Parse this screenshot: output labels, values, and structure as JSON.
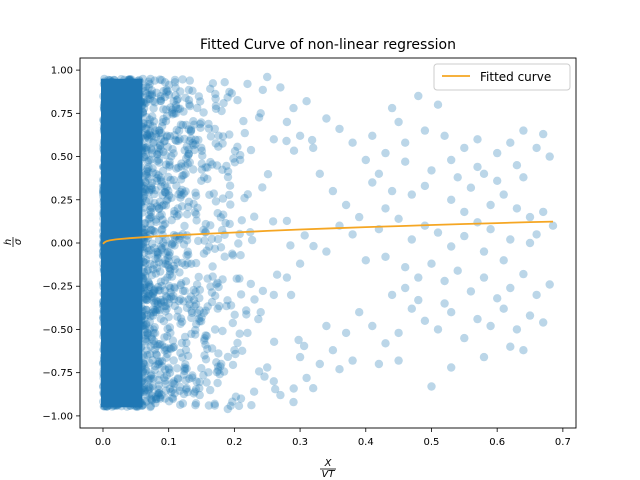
{
  "chart_data": {
    "type": "scatter",
    "title": "Fitted Curve of non-linear regression",
    "xlabel_num": "X",
    "xlabel_den": "VT",
    "ylabel_num": "h",
    "ylabel_den": "σ",
    "xlim": [
      -0.035,
      0.72
    ],
    "ylim": [
      -1.07,
      1.07
    ],
    "xticks": [
      0.0,
      0.1,
      0.2,
      0.3,
      0.4,
      0.5,
      0.6,
      0.7
    ],
    "xtick_labels": [
      "0.0",
      "0.1",
      "0.2",
      "0.3",
      "0.4",
      "0.5",
      "0.6",
      "0.7"
    ],
    "yticks": [
      -1.0,
      -0.75,
      -0.5,
      -0.25,
      0.0,
      0.25,
      0.5,
      0.75,
      1.0
    ],
    "ytick_labels": [
      "−1.00",
      "−0.75",
      "−0.50",
      "−0.25",
      "0.00",
      "0.25",
      "0.50",
      "0.75",
      "1.00"
    ],
    "grid": false,
    "legend": {
      "position": "top-right",
      "entries": [
        "Fitted curve"
      ]
    },
    "series": [
      {
        "kind": "scatter",
        "color": "#1f77b4",
        "alpha": 0.3,
        "points": [
          [
            0.48,
            0.85
          ],
          [
            0.51,
            0.8
          ],
          [
            0.45,
            0.7
          ],
          [
            0.52,
            0.62
          ],
          [
            0.55,
            0.55
          ],
          [
            0.57,
            0.6
          ],
          [
            0.6,
            0.52
          ],
          [
            0.62,
            0.58
          ],
          [
            0.64,
            0.65
          ],
          [
            0.66,
            0.55
          ],
          [
            0.68,
            0.5
          ],
          [
            0.67,
            0.63
          ],
          [
            0.63,
            0.45
          ],
          [
            0.58,
            0.4
          ],
          [
            0.54,
            0.38
          ],
          [
            0.5,
            0.42
          ],
          [
            0.46,
            0.47
          ],
          [
            0.43,
            0.52
          ],
          [
            0.4,
            0.48
          ],
          [
            0.38,
            0.58
          ],
          [
            0.36,
            0.66
          ],
          [
            0.34,
            0.72
          ],
          [
            0.31,
            0.82
          ],
          [
            0.29,
            0.78
          ],
          [
            0.27,
            0.9
          ],
          [
            0.25,
            0.96
          ],
          [
            0.22,
            0.92
          ],
          [
            0.41,
            0.35
          ],
          [
            0.44,
            0.3
          ],
          [
            0.47,
            0.28
          ],
          [
            0.49,
            0.33
          ],
          [
            0.53,
            0.25
          ],
          [
            0.56,
            0.32
          ],
          [
            0.59,
            0.22
          ],
          [
            0.61,
            0.28
          ],
          [
            0.63,
            0.2
          ],
          [
            0.65,
            0.15
          ],
          [
            0.67,
            0.18
          ],
          [
            0.685,
            0.1
          ],
          [
            0.66,
            0.05
          ],
          [
            0.62,
            0.02
          ],
          [
            0.59,
            0.08
          ],
          [
            0.57,
            0.12
          ],
          [
            0.55,
            0.04
          ],
          [
            0.53,
            -0.02
          ],
          [
            0.51,
            0.06
          ],
          [
            0.49,
            0.1
          ],
          [
            0.47,
            0.02
          ],
          [
            0.45,
            0.14
          ],
          [
            0.43,
            0.2
          ],
          [
            0.42,
            0.08
          ],
          [
            0.39,
            0.15
          ],
          [
            0.37,
            0.22
          ],
          [
            0.35,
            0.3
          ],
          [
            0.33,
            0.4
          ],
          [
            0.32,
            0.55
          ],
          [
            0.3,
            0.62
          ],
          [
            0.28,
            0.7
          ],
          [
            0.26,
            0.6
          ],
          [
            0.24,
            0.75
          ],
          [
            0.4,
            -0.1
          ],
          [
            0.43,
            -0.08
          ],
          [
            0.46,
            -0.14
          ],
          [
            0.48,
            -0.2
          ],
          [
            0.5,
            -0.12
          ],
          [
            0.52,
            -0.22
          ],
          [
            0.54,
            -0.16
          ],
          [
            0.56,
            -0.28
          ],
          [
            0.58,
            -0.2
          ],
          [
            0.6,
            -0.32
          ],
          [
            0.62,
            -0.26
          ],
          [
            0.64,
            -0.18
          ],
          [
            0.66,
            -0.3
          ],
          [
            0.68,
            -0.24
          ],
          [
            0.65,
            -0.42
          ],
          [
            0.63,
            -0.5
          ],
          [
            0.61,
            -0.38
          ],
          [
            0.59,
            -0.48
          ],
          [
            0.57,
            -0.44
          ],
          [
            0.55,
            -0.55
          ],
          [
            0.53,
            -0.4
          ],
          [
            0.51,
            -0.5
          ],
          [
            0.49,
            -0.45
          ],
          [
            0.47,
            -0.38
          ],
          [
            0.45,
            -0.52
          ],
          [
            0.43,
            -0.58
          ],
          [
            0.41,
            -0.48
          ],
          [
            0.39,
            -0.4
          ],
          [
            0.37,
            -0.52
          ],
          [
            0.35,
            -0.62
          ],
          [
            0.34,
            -0.48
          ],
          [
            0.33,
            -0.7
          ],
          [
            0.32,
            -0.84
          ],
          [
            0.31,
            -0.78
          ],
          [
            0.3,
            -0.66
          ],
          [
            0.29,
            -0.92
          ],
          [
            0.27,
            -0.88
          ],
          [
            0.26,
            -0.8
          ],
          [
            0.25,
            -0.72
          ],
          [
            0.23,
            -0.86
          ],
          [
            0.21,
            -0.9
          ],
          [
            0.19,
            -0.96
          ],
          [
            0.17,
            -0.93
          ],
          [
            0.36,
            -0.73
          ],
          [
            0.38,
            -0.68
          ],
          [
            0.42,
            -0.7
          ],
          [
            0.45,
            -0.68
          ],
          [
            0.5,
            -0.83
          ],
          [
            0.53,
            -0.72
          ],
          [
            0.58,
            -0.66
          ],
          [
            0.62,
            -0.6
          ],
          [
            0.64,
            -0.62
          ],
          [
            0.67,
            -0.46
          ],
          [
            0.44,
            -0.3
          ],
          [
            0.46,
            -0.26
          ],
          [
            0.48,
            -0.33
          ],
          [
            0.52,
            -0.35
          ],
          [
            0.36,
            0.1
          ],
          [
            0.38,
            0.05
          ],
          [
            0.34,
            -0.05
          ],
          [
            0.3,
            -0.12
          ],
          [
            0.28,
            -0.2
          ],
          [
            0.26,
            -0.3
          ],
          [
            0.24,
            -0.4
          ],
          [
            0.22,
            -0.52
          ],
          [
            0.2,
            -0.62
          ],
          [
            0.18,
            -0.7
          ],
          [
            0.42,
            0.4
          ],
          [
            0.46,
            0.58
          ],
          [
            0.49,
            0.65
          ],
          [
            0.53,
            0.48
          ],
          [
            0.57,
            0.44
          ],
          [
            0.6,
            0.36
          ],
          [
            0.64,
            0.38
          ],
          [
            0.55,
            0.18
          ],
          [
            0.58,
            -0.05
          ],
          [
            0.61,
            -0.1
          ],
          [
            0.65,
            0.0
          ],
          [
            0.41,
            0.62
          ],
          [
            0.44,
            0.78
          ]
        ]
      },
      {
        "kind": "line",
        "name": "Fitted curve",
        "color": "#f5a623",
        "x": [
          0.0,
          0.002,
          0.005,
          0.01,
          0.02,
          0.04,
          0.06,
          0.08,
          0.1,
          0.15,
          0.2,
          0.25,
          0.3,
          0.35,
          0.4,
          0.45,
          0.5,
          0.55,
          0.6,
          0.65,
          0.685
        ],
        "y": [
          -0.005,
          0.003,
          0.01,
          0.015,
          0.021,
          0.028,
          0.033,
          0.038,
          0.042,
          0.052,
          0.061,
          0.07,
          0.078,
          0.085,
          0.092,
          0.098,
          0.104,
          0.11,
          0.115,
          0.121,
          0.124
        ]
      }
    ]
  }
}
